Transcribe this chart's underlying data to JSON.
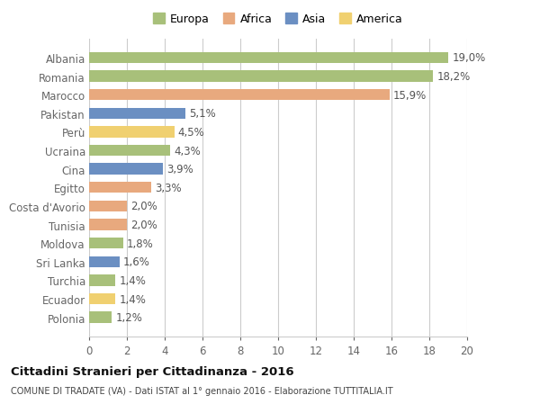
{
  "countries": [
    "Albania",
    "Romania",
    "Marocco",
    "Pakistan",
    "Perù",
    "Ucraina",
    "Cina",
    "Egitto",
    "Costa d'Avorio",
    "Tunisia",
    "Moldova",
    "Sri Lanka",
    "Turchia",
    "Ecuador",
    "Polonia"
  ],
  "values": [
    19.0,
    18.2,
    15.9,
    5.1,
    4.5,
    4.3,
    3.9,
    3.3,
    2.0,
    2.0,
    1.8,
    1.6,
    1.4,
    1.4,
    1.2
  ],
  "labels": [
    "19,0%",
    "18,2%",
    "15,9%",
    "5,1%",
    "4,5%",
    "4,3%",
    "3,9%",
    "3,3%",
    "2,0%",
    "2,0%",
    "1,8%",
    "1,6%",
    "1,4%",
    "1,4%",
    "1,2%"
  ],
  "continents": [
    "Europa",
    "Europa",
    "Africa",
    "Asia",
    "America",
    "Europa",
    "Asia",
    "Africa",
    "Africa",
    "Africa",
    "Europa",
    "Asia",
    "Europa",
    "America",
    "Europa"
  ],
  "colors": {
    "Europa": "#a8c07a",
    "Africa": "#e8a97e",
    "Asia": "#6b8fc2",
    "America": "#f0d070"
  },
  "legend_order": [
    "Europa",
    "Africa",
    "Asia",
    "America"
  ],
  "legend_colors": [
    "#a8c07a",
    "#e8a97e",
    "#6b8fc2",
    "#f0d070"
  ],
  "xlim": [
    0,
    20
  ],
  "xticks": [
    0,
    2,
    4,
    6,
    8,
    10,
    12,
    14,
    16,
    18,
    20
  ],
  "title": "Cittadini Stranieri per Cittadinanza - 2016",
  "subtitle": "COMUNE DI TRADATE (VA) - Dati ISTAT al 1° gennaio 2016 - Elaborazione TUTTITALIA.IT",
  "bg_color": "#ffffff",
  "bar_height": 0.6,
  "grid_color": "#cccccc",
  "label_fontsize": 8.5,
  "tick_fontsize": 8.5
}
